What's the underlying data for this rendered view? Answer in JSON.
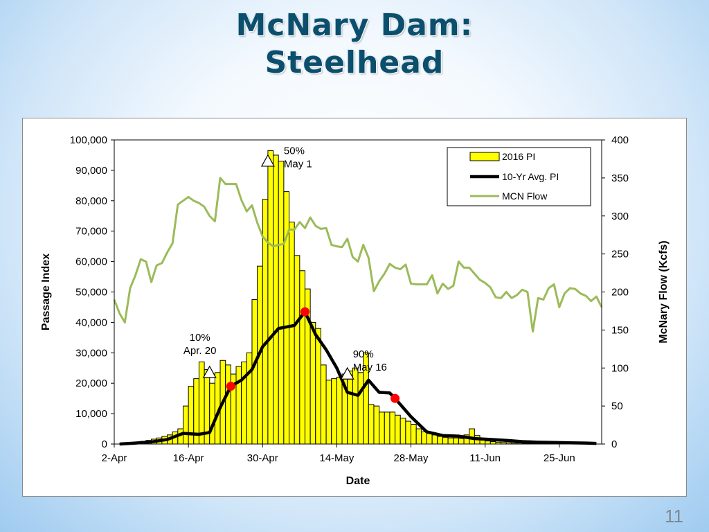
{
  "slide": {
    "title_line1": "McNary Dam:",
    "title_line2": "Steelhead",
    "page_number": "11"
  },
  "chart_data": {
    "type": "bar",
    "xlabel": "Date",
    "ylabel": "Passage Index",
    "y2label": "McNary Flow (Kcfs)",
    "ylim": [
      0,
      100000
    ],
    "y2lim": [
      0,
      400
    ],
    "xlim": [
      "2-Apr",
      "3-Jul"
    ],
    "x_ticks": [
      "2-Apr",
      "16-Apr",
      "30-Apr",
      "14-May",
      "28-May",
      "11-Jun",
      "25-Jun"
    ],
    "y_ticks": [
      "0",
      "10,000",
      "20,000",
      "30,000",
      "40,000",
      "50,000",
      "60,000",
      "70,000",
      "80,000",
      "90,000",
      "100,000"
    ],
    "y2_ticks": [
      "0",
      "50",
      "100",
      "150",
      "200",
      "250",
      "300",
      "350",
      "400"
    ],
    "grid": false,
    "legend_position": "top-right",
    "colors": {
      "bars": "#ffff00",
      "bar_edge": "#000000",
      "avg_line": "#000000",
      "flow_line": "#9bbb59",
      "markers": "#ff0000"
    },
    "series": [
      {
        "name": "2016 PI",
        "type": "bar",
        "x_start": "2-Apr",
        "values": [
          0,
          0,
          200,
          400,
          600,
          900,
          1200,
          1600,
          2000,
          2500,
          3000,
          4000,
          5000,
          12500,
          19000,
          21500,
          27000,
          24500,
          20000,
          23500,
          27500,
          26000,
          23000,
          25500,
          27000,
          30000,
          47500,
          58500,
          80500,
          96500,
          95000,
          93000,
          83000,
          73000,
          62000,
          57000,
          51000,
          40000,
          38000,
          26000,
          21000,
          21500,
          22000,
          23000,
          24000,
          25000,
          23500,
          30000,
          13000,
          12500,
          10500,
          10500,
          10500,
          9500,
          8500,
          7500,
          6500,
          5000,
          4000,
          3500,
          3000,
          2500,
          2200,
          2000,
          2000,
          1800,
          3000,
          5000,
          2800,
          1500,
          1000,
          800,
          600,
          500,
          400,
          300,
          300,
          200,
          200,
          150,
          150,
          100,
          100,
          100,
          80,
          80,
          50,
          50,
          40,
          30
        ]
      },
      {
        "name": "10-Yr Avg. PI",
        "type": "line",
        "points": [
          [
            "3-Apr",
            0
          ],
          [
            "6-Apr",
            300
          ],
          [
            "9-Apr",
            700
          ],
          [
            "12-Apr",
            1500
          ],
          [
            "15-Apr",
            3500
          ],
          [
            "18-Apr",
            3200
          ],
          [
            "20-Apr",
            3800
          ],
          [
            "22-Apr",
            12000
          ],
          [
            "24-Apr",
            19000
          ],
          [
            "26-Apr",
            21000
          ],
          [
            "28-Apr",
            24500
          ],
          [
            "30-Apr",
            32000
          ],
          [
            "3-May",
            38000
          ],
          [
            "6-May",
            39000
          ],
          [
            "8-May",
            43500
          ],
          [
            "10-May",
            36000
          ],
          [
            "12-May",
            31000
          ],
          [
            "14-May",
            25000
          ],
          [
            "16-May",
            17000
          ],
          [
            "18-May",
            16000
          ],
          [
            "20-May",
            21000
          ],
          [
            "22-May",
            17000
          ],
          [
            "24-May",
            16800
          ],
          [
            "25-May",
            15000
          ],
          [
            "28-May",
            9000
          ],
          [
            "31-May",
            4000
          ],
          [
            "3-Jun",
            2800
          ],
          [
            "6-Jun",
            2600
          ],
          [
            "9-Jun",
            1800
          ],
          [
            "12-Jun",
            1500
          ],
          [
            "15-Jun",
            1200
          ],
          [
            "18-Jun",
            800
          ],
          [
            "21-Jun",
            600
          ],
          [
            "24-Jun",
            500
          ],
          [
            "27-Jun",
            400
          ],
          [
            "30-Jun",
            300
          ],
          [
            "2-Jul",
            200
          ]
        ]
      },
      {
        "name": "MCN Flow",
        "type": "line",
        "axis": "right",
        "points": [
          [
            "2-Apr",
            190
          ],
          [
            "3-Apr",
            172
          ],
          [
            "4-Apr",
            160
          ],
          [
            "5-Apr",
            205
          ],
          [
            "6-Apr",
            222
          ],
          [
            "7-Apr",
            243
          ],
          [
            "8-Apr",
            240
          ],
          [
            "9-Apr",
            213
          ],
          [
            "10-Apr",
            235
          ],
          [
            "11-Apr",
            238
          ],
          [
            "12-Apr",
            252
          ],
          [
            "13-Apr",
            264
          ],
          [
            "14-Apr",
            315
          ],
          [
            "15-Apr",
            320
          ],
          [
            "16-Apr",
            325
          ],
          [
            "17-Apr",
            320
          ],
          [
            "18-Apr",
            317
          ],
          [
            "19-Apr",
            312
          ],
          [
            "20-Apr",
            300
          ],
          [
            "21-Apr",
            293
          ],
          [
            "22-Apr",
            350
          ],
          [
            "23-Apr",
            342
          ],
          [
            "24-Apr",
            342
          ],
          [
            "25-Apr",
            342
          ],
          [
            "26-Apr",
            321
          ],
          [
            "27-Apr",
            306
          ],
          [
            "28-Apr",
            314
          ],
          [
            "29-Apr",
            291
          ],
          [
            "30-Apr",
            273
          ],
          [
            "1-May",
            265
          ],
          [
            "2-May",
            260
          ],
          [
            "3-May",
            262
          ],
          [
            "4-May",
            263
          ],
          [
            "5-May",
            282
          ],
          [
            "6-May",
            282
          ],
          [
            "7-May",
            292
          ],
          [
            "8-May",
            284
          ],
          [
            "9-May",
            298
          ],
          [
            "10-May",
            287
          ],
          [
            "11-May",
            283
          ],
          [
            "12-May",
            284
          ],
          [
            "13-May",
            262
          ],
          [
            "14-May",
            260
          ],
          [
            "15-May",
            259
          ],
          [
            "16-May",
            270
          ],
          [
            "17-May",
            246
          ],
          [
            "18-May",
            240
          ],
          [
            "19-May",
            262
          ],
          [
            "20-May",
            245
          ],
          [
            "21-May",
            201
          ],
          [
            "22-May",
            214
          ],
          [
            "23-May",
            224
          ],
          [
            "24-May",
            237
          ],
          [
            "25-May",
            232
          ],
          [
            "26-May",
            230
          ],
          [
            "27-May",
            236
          ],
          [
            "28-May",
            211
          ],
          [
            "29-May",
            210
          ],
          [
            "30-May",
            210
          ],
          [
            "31-May",
            210
          ],
          [
            "1-Jun",
            222
          ],
          [
            "2-Jun",
            198
          ],
          [
            "3-Jun",
            211
          ],
          [
            "4-Jun",
            204
          ],
          [
            "5-Jun",
            208
          ],
          [
            "6-Jun",
            240
          ],
          [
            "7-Jun",
            232
          ],
          [
            "8-Jun",
            232
          ],
          [
            "9-Jun",
            224
          ],
          [
            "10-Jun",
            216
          ],
          [
            "11-Jun",
            212
          ],
          [
            "12-Jun",
            206
          ],
          [
            "13-Jun",
            193
          ],
          [
            "14-Jun",
            192
          ],
          [
            "15-Jun",
            200
          ],
          [
            "16-Jun",
            192
          ],
          [
            "17-Jun",
            196
          ],
          [
            "18-Jun",
            203
          ],
          [
            "19-Jun",
            200
          ],
          [
            "20-Jun",
            148
          ],
          [
            "21-Jun",
            192
          ],
          [
            "22-Jun",
            190
          ],
          [
            "23-Jun",
            205
          ],
          [
            "24-Jun",
            210
          ],
          [
            "25-Jun",
            180
          ],
          [
            "26-Jun",
            198
          ],
          [
            "27-Jun",
            205
          ],
          [
            "28-Jun",
            204
          ],
          [
            "29-Jun",
            198
          ],
          [
            "30-Jun",
            195
          ],
          [
            "1-Jul",
            188
          ],
          [
            "2-Jul",
            194
          ],
          [
            "3-Jul",
            180
          ]
        ]
      }
    ],
    "markers": [
      {
        "type": "triangle",
        "x": "20-Apr",
        "y": 23500,
        "label_lines": [
          "10%",
          "Apr. 20"
        ]
      },
      {
        "type": "triangle",
        "x": "1-May",
        "y": 93000,
        "label_lines": [
          "50%",
          "May 1"
        ]
      },
      {
        "type": "triangle",
        "x": "16-May",
        "y": 23000,
        "label_lines": [
          "90%",
          "May 16"
        ]
      },
      {
        "type": "circle",
        "x": "24-Apr",
        "y": 19000
      },
      {
        "type": "circle",
        "x": "8-May",
        "y": 43500
      },
      {
        "type": "circle",
        "x": "25-May",
        "y": 15000
      }
    ]
  }
}
